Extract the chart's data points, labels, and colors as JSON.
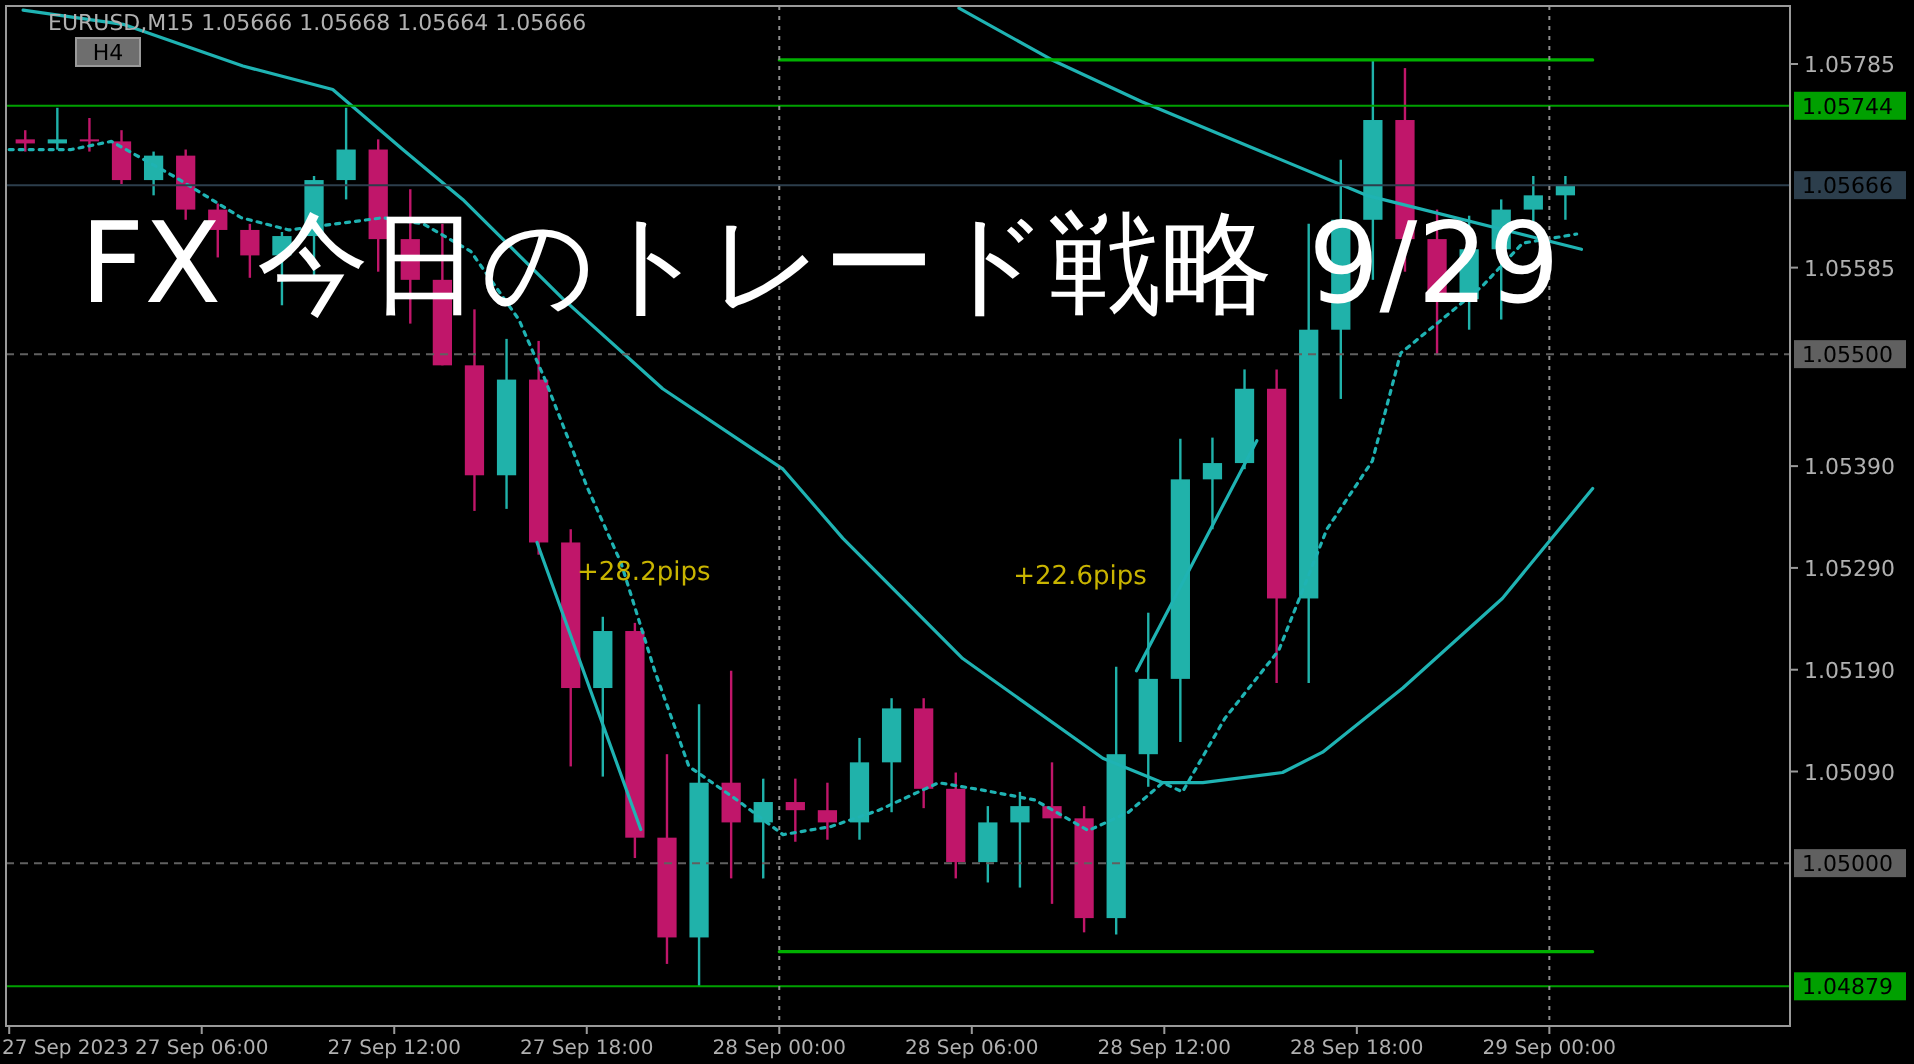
{
  "chart_data": {
    "type": "candlestick",
    "title": "FX 今日のトレード戦略 9/29",
    "annotations": [
      "EURUSD,M15  1.05666 1.05668 1.05664 1.05666",
      "H4",
      {
        "text": "+28.2pips",
        "x": "2023-09-27T16:27",
        "y": 1.05315
      },
      "+22.6pips"
    ],
    "xlim": [
      "2023-09-26T23:54",
      "2023-09-29T07:30"
    ],
    "ylim": [
      1.0484,
      1.05842
    ],
    "xticks": [
      {
        "value": "2023-09-27T00:00",
        "label": "27 Sep 2023"
      },
      {
        "value": "2023-09-27T06:00",
        "label": "27 Sep 06:00"
      },
      {
        "value": "2023-09-27T12:00",
        "label": "27 Sep 12:00"
      },
      {
        "value": "2023-09-27T18:00",
        "label": "27 Sep 18:00"
      },
      {
        "value": "2023-09-28T00:00",
        "label": "28 Sep 00:00"
      },
      {
        "value": "2023-09-28T06:00",
        "label": "28 Sep 06:00"
      },
      {
        "value": "2023-09-28T12:00",
        "label": "28 Sep 12:00"
      },
      {
        "value": "2023-09-28T18:00",
        "label": "28 Sep 18:00"
      },
      {
        "value": "2023-09-29T00:00",
        "label": "29 Sep 00:00"
      }
    ],
    "yticks": [
      {
        "value": 1.05785,
        "label": "1.05785"
      },
      {
        "value": 1.05585,
        "label": "1.05585"
      },
      {
        "value": 1.0539,
        "label": "1.05390"
      },
      {
        "value": 1.0529,
        "label": "1.05290"
      },
      {
        "value": 1.0519,
        "label": "1.05190"
      },
      {
        "value": 1.0509,
        "label": "1.05090"
      }
    ],
    "ref_lines": [
      {
        "axis": "y",
        "value": 1.05744,
        "label": "1.05744",
        "color": "#00a000",
        "line_style": "solid"
      },
      {
        "axis": "y",
        "value": 1.04879,
        "label": "1.04879",
        "color": "#00a000",
        "line_style": "solid"
      },
      {
        "axis": "y",
        "value": 1.055,
        "label": "1.05500",
        "color": "#606060",
        "line_style": "dashed"
      },
      {
        "axis": "y",
        "value": 1.05,
        "label": "1.05000",
        "color": "#606060",
        "line_style": "dashed"
      },
      {
        "axis": "y",
        "value": 1.05666,
        "label": "1.05666",
        "color": "#2c3e4c",
        "line_style": "solid"
      },
      {
        "axis": "x",
        "value": "2023-09-28T00:00",
        "color": "#909090",
        "line_style": "dotted"
      },
      {
        "axis": "x",
        "value": "2023-09-29T00:00",
        "color": "#909090",
        "line_style": "dotted"
      }
    ],
    "series": [
      {
        "type": "line",
        "color": "#1fb3b3",
        "x": [
          "2023-09-27T00:26",
          "2023-09-27T03:33",
          "2023-09-27T07:17",
          "2023-09-27T10:05",
          "2023-09-27T12:16",
          "2023-09-27T14:08",
          "2023-09-27T17:16",
          "2023-09-27T20:22",
          "2023-09-28T00:07",
          "2023-09-28T01:59",
          "2023-09-28T05:43",
          "2023-09-28T10:05",
          "2023-09-28T11:57",
          "2023-09-28T13:12",
          "2023-09-28T15:41",
          "2023-09-28T16:56",
          "2023-09-28T19:26",
          "2023-09-28T22:32",
          "2023-09-29T01:21"
        ],
        "values": [
          1.05838,
          1.05824,
          1.05783,
          1.0576,
          1.05701,
          1.05652,
          1.05554,
          1.05466,
          1.05387,
          1.05319,
          1.05201,
          1.05103,
          1.05079,
          1.05079,
          1.05089,
          1.05109,
          1.05172,
          1.0526,
          1.05368
        ]
      },
      {
        "type": "line",
        "color": "#1fb3b3",
        "line_style": "dotted",
        "x": [
          "2023-09-27T00:00",
          "2023-09-27T01:56",
          "2023-09-27T03:11",
          "2023-09-27T05:07",
          "2023-09-27T07:14",
          "2023-09-27T08:43",
          "2023-09-27T11:39",
          "2023-09-27T12:54",
          "2023-09-27T14:23",
          "2023-09-27T15:53",
          "2023-09-27T16:42",
          "2023-09-27T18:01",
          "2023-09-27T19:04",
          "2023-09-27T20:07",
          "2023-09-27T21:11",
          "2023-09-27T22:41",
          "2023-09-28T00:07",
          "2023-09-28T01:37",
          "2023-09-28T03:06",
          "2023-09-28T04:58",
          "2023-09-28T06:28",
          "2023-09-28T07:58",
          "2023-09-28T09:38",
          "2023-09-28T10:53",
          "2023-09-28T11:57",
          "2023-09-28T12:34",
          "2023-09-28T13:53",
          "2023-09-28T15:34",
          "2023-09-28T17:04",
          "2023-09-28T18:29",
          "2023-09-28T19:22",
          "2023-09-28T20:25",
          "2023-09-28T21:55",
          "2023-09-28T23:10",
          "2023-09-29T00:51"
        ],
        "values": [
          1.05701,
          1.05701,
          1.05709,
          1.05675,
          1.05634,
          1.05622,
          1.05634,
          1.05628,
          1.05601,
          1.05534,
          1.05475,
          1.05369,
          1.05295,
          1.05189,
          1.05095,
          1.05062,
          1.05028,
          1.05036,
          1.05052,
          1.05079,
          1.05071,
          1.05062,
          1.05032,
          1.0505,
          1.05079,
          1.0507,
          1.05142,
          1.05209,
          1.05328,
          1.05395,
          1.05501,
          1.05528,
          1.05567,
          1.05609,
          1.05618
        ]
      },
      {
        "type": "line",
        "color": "#1fb3b3",
        "x": [
          "2023-09-28T05:36",
          "2023-09-28T08:30",
          "2023-09-28T11:18",
          "2023-09-28T18:18",
          "2023-09-29T01:00"
        ],
        "values": [
          1.0584,
          1.05789,
          1.05748,
          1.05656,
          1.05603
        ]
      },
      {
        "type": "line",
        "color": "#1fb3b3",
        "x": [
          "2023-09-27T16:27",
          "2023-09-27T19:41"
        ],
        "values": [
          1.05315,
          1.05033
        ]
      },
      {
        "type": "line",
        "color": "#1fb3b3",
        "x": [
          "2023-09-28T11:08",
          "2023-09-28T14:53"
        ],
        "values": [
          1.05189,
          1.05415
        ]
      },
      {
        "type": "line",
        "color": "#00b000",
        "x": [
          "2023-09-28T00:00",
          "2023-09-29T01:21"
        ],
        "values": [
          1.05789,
          1.05789
        ]
      },
      {
        "type": "line",
        "color": "#00b000",
        "x": [
          "2023-09-28T00:00",
          "2023-09-29T01:21"
        ],
        "values": [
          1.04913,
          1.04913
        ]
      },
      {
        "type": "candlestick",
        "x": [
          "2023-09-27T00:30",
          "2023-09-27T01:30",
          "2023-09-27T02:30",
          "2023-09-27T03:30",
          "2023-09-27T04:30",
          "2023-09-27T05:30",
          "2023-09-27T06:30",
          "2023-09-27T07:30",
          "2023-09-27T08:30",
          "2023-09-27T09:30",
          "2023-09-27T10:30",
          "2023-09-27T11:30",
          "2023-09-27T12:30",
          "2023-09-27T13:30",
          "2023-09-27T14:30",
          "2023-09-27T15:30",
          "2023-09-27T16:30",
          "2023-09-27T17:30",
          "2023-09-27T18:30",
          "2023-09-27T19:30",
          "2023-09-27T20:30",
          "2023-09-27T21:30",
          "2023-09-27T22:30",
          "2023-09-27T23:30",
          "2023-09-28T00:30",
          "2023-09-28T01:30",
          "2023-09-28T02:30",
          "2023-09-28T03:30",
          "2023-09-28T04:30",
          "2023-09-28T05:30",
          "2023-09-28T06:30",
          "2023-09-28T07:30",
          "2023-09-28T08:30",
          "2023-09-28T09:30",
          "2023-09-28T10:30",
          "2023-09-28T11:30",
          "2023-09-28T12:30",
          "2023-09-28T13:30",
          "2023-09-28T14:30",
          "2023-09-28T15:30",
          "2023-09-28T16:30",
          "2023-09-28T17:30",
          "2023-09-28T18:30",
          "2023-09-28T19:30",
          "2023-09-28T20:30",
          "2023-09-28T21:30",
          "2023-09-28T22:30",
          "2023-09-28T23:30",
          "2023-09-29T00:30"
        ],
        "ohlc": [
          [
            1.05711,
            1.0572,
            1.05699,
            1.05707
          ],
          [
            1.05707,
            1.05742,
            1.05701,
            1.05711
          ],
          [
            1.05711,
            1.05732,
            1.05699,
            1.05709
          ],
          [
            1.05709,
            1.0572,
            1.05667,
            1.05671
          ],
          [
            1.05671,
            1.05699,
            1.05656,
            1.05695
          ],
          [
            1.05695,
            1.05701,
            1.05632,
            1.05642
          ],
          [
            1.05642,
            1.05648,
            1.05595,
            1.05622
          ],
          [
            1.05622,
            1.05628,
            1.05575,
            1.05597
          ],
          [
            1.05597,
            1.0562,
            1.05548,
            1.05616
          ],
          [
            1.05616,
            1.05675,
            1.05575,
            1.05671
          ],
          [
            1.05671,
            1.05742,
            1.05652,
            1.05701
          ],
          [
            1.05701,
            1.05711,
            1.05581,
            1.05613
          ],
          [
            1.05613,
            1.05662,
            1.0553,
            1.05573
          ],
          [
            1.05573,
            1.05628,
            1.05489,
            1.05489
          ],
          [
            1.05489,
            1.05544,
            1.05346,
            1.05381
          ],
          [
            1.05381,
            1.05515,
            1.05348,
            1.05475
          ],
          [
            1.05475,
            1.05513,
            1.05303,
            1.05315
          ],
          [
            1.05315,
            1.05328,
            1.05095,
            1.05172
          ],
          [
            1.05172,
            1.05242,
            1.05085,
            1.05228
          ],
          [
            1.05228,
            1.05236,
            1.05005,
            1.05025
          ],
          [
            1.05025,
            1.05107,
            1.04901,
            1.04927
          ],
          [
            1.04927,
            1.05156,
            1.04879,
            1.05079
          ],
          [
            1.05079,
            1.05189,
            1.04985,
            1.0504
          ],
          [
            1.0504,
            1.05083,
            1.04985,
            1.0506
          ],
          [
            1.0506,
            1.05083,
            1.05021,
            1.05052
          ],
          [
            1.05052,
            1.05079,
            1.05023,
            1.0504
          ],
          [
            1.0504,
            1.05123,
            1.05023,
            1.05099
          ],
          [
            1.05099,
            1.05162,
            1.0505,
            1.05152
          ],
          [
            1.05152,
            1.05162,
            1.05054,
            1.05073
          ],
          [
            1.05073,
            1.05089,
            1.04985,
            1.05001
          ],
          [
            1.05001,
            1.05056,
            1.04981,
            1.0504
          ],
          [
            1.0504,
            1.0507,
            1.04976,
            1.05056
          ],
          [
            1.05056,
            1.05099,
            1.0496,
            1.05044
          ],
          [
            1.05044,
            1.05056,
            1.04932,
            1.04946
          ],
          [
            1.04946,
            1.05193,
            1.0493,
            1.05107
          ],
          [
            1.05107,
            1.05246,
            1.05075,
            1.05181
          ],
          [
            1.05181,
            1.05417,
            1.05119,
            1.05377
          ],
          [
            1.05377,
            1.05418,
            1.05328,
            1.05393
          ],
          [
            1.05393,
            1.05485,
            1.05387,
            1.05466
          ],
          [
            1.05466,
            1.05485,
            1.05177,
            1.0526
          ],
          [
            1.0526,
            1.05628,
            1.05177,
            1.05524
          ],
          [
            1.05524,
            1.05691,
            1.05456,
            1.05632
          ],
          [
            1.05632,
            1.05789,
            1.05573,
            1.0573
          ],
          [
            1.0573,
            1.05781,
            1.05581,
            1.05613
          ],
          [
            1.05613,
            1.05642,
            1.05499,
            1.05554
          ],
          [
            1.05554,
            1.05636,
            1.05524,
            1.05603
          ],
          [
            1.05603,
            1.05652,
            1.05534,
            1.05642
          ],
          [
            1.05642,
            1.05675,
            1.05628,
            1.05656
          ],
          [
            1.05656,
            1.05675,
            1.05632,
            1.05666
          ]
        ],
        "colors": [
          "#c0166a",
          "#20b2aa",
          "#c0166a",
          "#c0166a",
          "#20b2aa",
          "#c0166a",
          "#c0166a",
          "#c0166a",
          "#20b2aa",
          "#20b2aa",
          "#20b2aa",
          "#c0166a",
          "#c0166a",
          "#c0166a",
          "#c0166a",
          "#20b2aa",
          "#c0166a",
          "#c0166a",
          "#20b2aa",
          "#c0166a",
          "#c0166a",
          "#20b2aa",
          "#c0166a",
          "#20b2aa",
          "#c0166a",
          "#c0166a",
          "#20b2aa",
          "#20b2aa",
          "#c0166a",
          "#c0166a",
          "#20b2aa",
          "#20b2aa",
          "#c0166a",
          "#c0166a",
          "#20b2aa",
          "#20b2aa",
          "#20b2aa",
          "#20b2aa",
          "#20b2aa",
          "#c0166a",
          "#20b2aa",
          "#20b2aa",
          "#20b2aa",
          "#c0166a",
          "#c0166a",
          "#20b2aa",
          "#20b2aa",
          "#20b2aa",
          "#20b2aa"
        ]
      }
    ]
  }
}
